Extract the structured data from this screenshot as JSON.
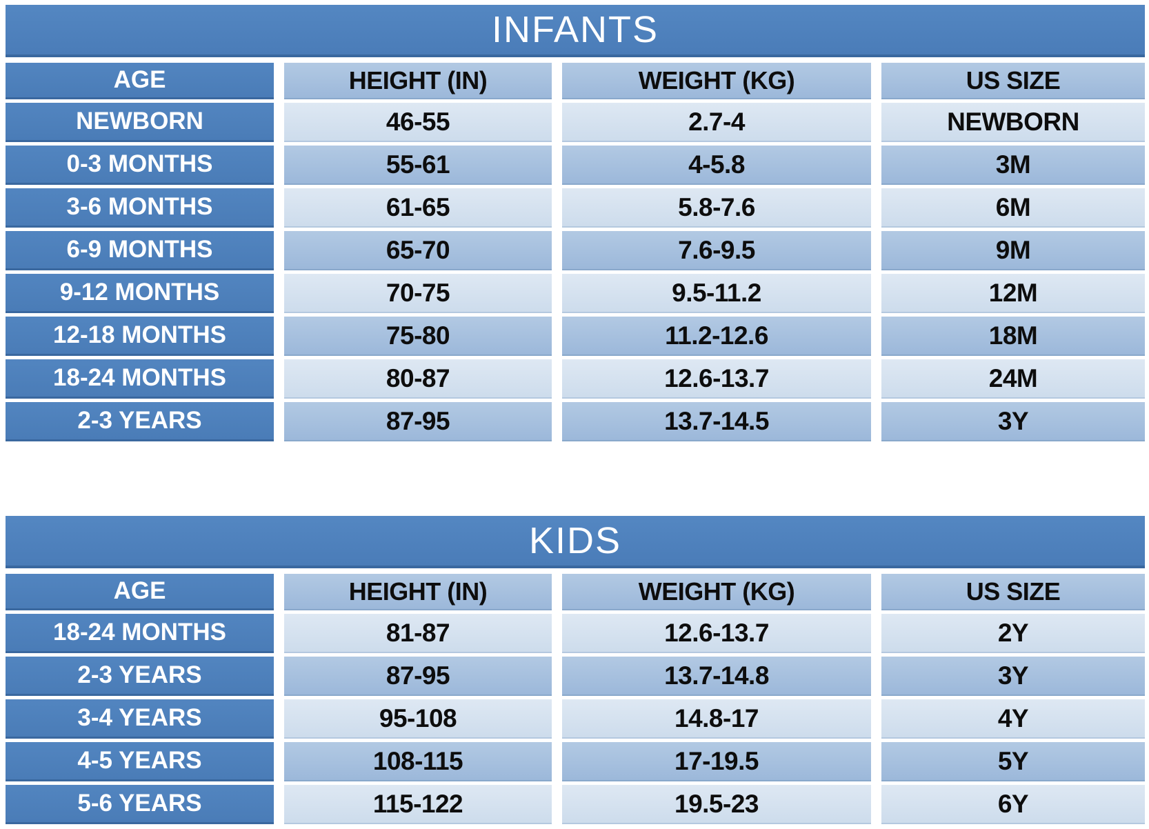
{
  "colors": {
    "dark_blue": "#4E81BD",
    "medium_blue": "#A6C0DD",
    "light_blue": "#D6E2F0",
    "border_blue": "#3A689F",
    "text_dark": "#0D0D0D",
    "text_light": "#FFFFFF"
  },
  "chart_data": [
    {
      "type": "table",
      "title": "INFANTS",
      "columns": [
        "AGE",
        "HEIGHT (IN)",
        "WEIGHT (KG)",
        "US SIZE"
      ],
      "rows": [
        [
          "NEWBORN",
          "46-55",
          "2.7-4",
          "NEWBORN"
        ],
        [
          "0-3 MONTHS",
          "55-61",
          "4-5.8",
          "3M"
        ],
        [
          "3-6 MONTHS",
          "61-65",
          "5.8-7.6",
          "6M"
        ],
        [
          "6-9 MONTHS",
          "65-70",
          "7.6-9.5",
          "9M"
        ],
        [
          "9-12 MONTHS",
          "70-75",
          "9.5-11.2",
          "12M"
        ],
        [
          "12-18 MONTHS",
          "75-80",
          "11.2-12.6",
          "18M"
        ],
        [
          "18-24 MONTHS",
          "80-87",
          "12.6-13.7",
          "24M"
        ],
        [
          "2-3 YEARS",
          "87-95",
          "13.7-14.5",
          "3Y"
        ]
      ]
    },
    {
      "type": "table",
      "title": "KIDS",
      "columns": [
        "AGE",
        "HEIGHT (IN)",
        "WEIGHT (KG)",
        "US SIZE"
      ],
      "rows": [
        [
          "18-24 MONTHS",
          "81-87",
          "12.6-13.7",
          "2Y"
        ],
        [
          "2-3 YEARS",
          "87-95",
          "13.7-14.8",
          "3Y"
        ],
        [
          "3-4 YEARS",
          "95-108",
          "14.8-17",
          "4Y"
        ],
        [
          "4-5 YEARS",
          "108-115",
          "17-19.5",
          "5Y"
        ],
        [
          "5-6 YEARS",
          "115-122",
          "19.5-23",
          "6Y"
        ]
      ]
    }
  ]
}
